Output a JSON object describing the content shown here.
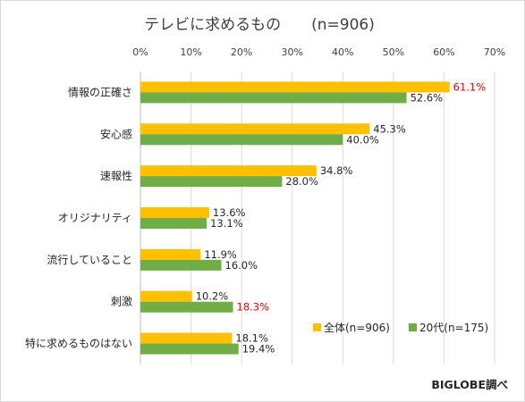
{
  "chart_data": {
    "type": "bar",
    "orientation": "horizontal",
    "title": "テレビに求めるもの　　(n=906)",
    "x_ticks": [
      "0%",
      "10%",
      "20%",
      "30%",
      "40%",
      "50%",
      "60%",
      "70%"
    ],
    "xlim": [
      0,
      70
    ],
    "grid": true,
    "legend_position": "bottom-right",
    "categories": [
      "情報の正確さ",
      "安心感",
      "速報性",
      "オリジナリティ",
      "流行していること",
      "刺激",
      "特に求めるものはない"
    ],
    "series": [
      {
        "name": "全体(n=906)",
        "color": "#ffc000",
        "values": [
          61.1,
          45.3,
          34.8,
          13.6,
          11.9,
          10.2,
          18.1
        ],
        "labels": [
          "61.1%",
          "45.3%",
          "34.8%",
          "13.6%",
          "11.9%",
          "10.2%",
          "18.1%"
        ]
      },
      {
        "name": "20代(n=175)",
        "color": "#70ad47",
        "values": [
          52.6,
          40.0,
          28.0,
          13.1,
          16.0,
          18.3,
          19.4
        ],
        "labels": [
          "52.6%",
          "40.0%",
          "28.0%",
          "13.1%",
          "16.0%",
          "18.3%",
          "19.4%"
        ]
      }
    ],
    "highlighted_labels": [
      {
        "series": 0,
        "index": 0,
        "color": "#e00000"
      },
      {
        "series": 1,
        "index": 5,
        "color": "#e00000"
      }
    ]
  },
  "source_note": "BIGLOBE調べ"
}
